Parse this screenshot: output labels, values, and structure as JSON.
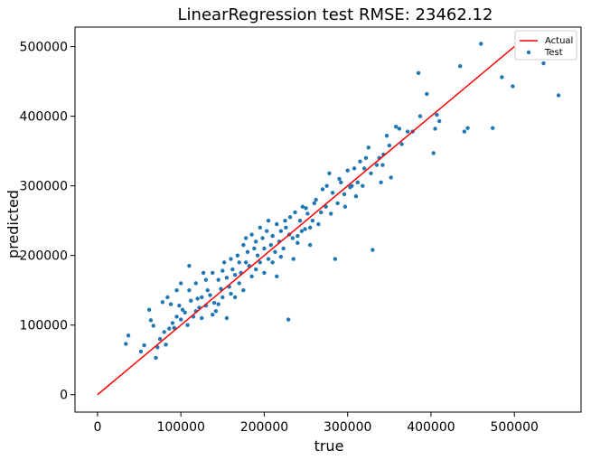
{
  "chart_data": {
    "type": "scatter",
    "title": "LinearRegression test RMSE: 23462.12",
    "xlabel": "true",
    "ylabel": "predicted",
    "xlim": [
      -27000,
      580000
    ],
    "ylim": [
      -25000,
      528000
    ],
    "xticks": [
      0,
      100000,
      200000,
      300000,
      400000,
      500000
    ],
    "yticks": [
      0,
      100000,
      200000,
      300000,
      400000,
      500000
    ],
    "xtick_labels": [
      "0",
      "100000",
      "200000",
      "300000",
      "400000",
      "500000"
    ],
    "ytick_labels": [
      "0",
      "100000",
      "200000",
      "300000",
      "400000",
      "500000"
    ],
    "grid": false,
    "legend_position": "top-right",
    "series": [
      {
        "name": "Actual",
        "kind": "line",
        "color": "#ff0000",
        "points": [
          [
            0,
            0
          ],
          [
            500000,
            500000
          ]
        ]
      },
      {
        "name": "Test",
        "kind": "scatter",
        "color": "#1f77b4",
        "points": [
          [
            34000,
            73000
          ],
          [
            37000,
            85000
          ],
          [
            52000,
            62000
          ],
          [
            56000,
            71000
          ],
          [
            62000,
            122000
          ],
          [
            64000,
            107000
          ],
          [
            67000,
            99000
          ],
          [
            70000,
            53000
          ],
          [
            72000,
            68000
          ],
          [
            75000,
            80000
          ],
          [
            78000,
            133000
          ],
          [
            80000,
            90000
          ],
          [
            82000,
            72000
          ],
          [
            84000,
            140000
          ],
          [
            86000,
            95000
          ],
          [
            88000,
            130000
          ],
          [
            90000,
            103000
          ],
          [
            92000,
            96000
          ],
          [
            95000,
            112000
          ],
          [
            98000,
            128000
          ],
          [
            100000,
            108000
          ],
          [
            102000,
            122000
          ],
          [
            105000,
            118000
          ],
          [
            108000,
            100000
          ],
          [
            110000,
            150000
          ],
          [
            112000,
            135000
          ],
          [
            115000,
            112000
          ],
          [
            118000,
            160000
          ],
          [
            120000,
            138000
          ],
          [
            122000,
            125000
          ],
          [
            125000,
            140000
          ],
          [
            127000,
            175000
          ],
          [
            130000,
            128000
          ],
          [
            132000,
            150000
          ],
          [
            135000,
            143000
          ],
          [
            138000,
            175000
          ],
          [
            140000,
            132000
          ],
          [
            142000,
            120000
          ],
          [
            145000,
            165000
          ],
          [
            148000,
            152000
          ],
          [
            150000,
            140000
          ],
          [
            152000,
            190000
          ],
          [
            155000,
            168000
          ],
          [
            158000,
            155000
          ],
          [
            160000,
            145000
          ],
          [
            162000,
            180000
          ],
          [
            165000,
            172000
          ],
          [
            168000,
            200000
          ],
          [
            170000,
            160000
          ],
          [
            172000,
            175000
          ],
          [
            175000,
            215000
          ],
          [
            178000,
            190000
          ],
          [
            180000,
            205000
          ],
          [
            182000,
            185000
          ],
          [
            185000,
            170000
          ],
          [
            188000,
            210000
          ],
          [
            190000,
            220000
          ],
          [
            192000,
            200000
          ],
          [
            195000,
            190000
          ],
          [
            198000,
            225000
          ],
          [
            200000,
            210000
          ],
          [
            203000,
            235000
          ],
          [
            205000,
            195000
          ],
          [
            208000,
            215000
          ],
          [
            210000,
            228000
          ],
          [
            213000,
            205000
          ],
          [
            215000,
            245000
          ],
          [
            218000,
            220000
          ],
          [
            220000,
            235000
          ],
          [
            223000,
            210000
          ],
          [
            226000,
            240000
          ],
          [
            229000,
            108000
          ],
          [
            231000,
            255000
          ],
          [
            234000,
            225000
          ],
          [
            237000,
            262000
          ],
          [
            240000,
            228000
          ],
          [
            243000,
            250000
          ],
          [
            246000,
            270000
          ],
          [
            249000,
            238000
          ],
          [
            252000,
            260000
          ],
          [
            255000,
            215000
          ],
          [
            258000,
            250000
          ],
          [
            262000,
            280000
          ],
          [
            265000,
            245000
          ],
          [
            270000,
            295000
          ],
          [
            274000,
            270000
          ],
          [
            278000,
            318000
          ],
          [
            282000,
            290000
          ],
          [
            285000,
            195000
          ],
          [
            288000,
            275000
          ],
          [
            292000,
            305000
          ],
          [
            296000,
            288000
          ],
          [
            300000,
            322000
          ],
          [
            305000,
            300000
          ],
          [
            310000,
            285000
          ],
          [
            315000,
            335000
          ],
          [
            320000,
            325000
          ],
          [
            325000,
            355000
          ],
          [
            330000,
            208000
          ],
          [
            335000,
            330000
          ],
          [
            340000,
            305000
          ],
          [
            343000,
            345000
          ],
          [
            347000,
            372000
          ],
          [
            352000,
            312000
          ],
          [
            358000,
            385000
          ],
          [
            365000,
            360000
          ],
          [
            378000,
            378000
          ],
          [
            385000,
            462000
          ],
          [
            387000,
            400000
          ],
          [
            395000,
            432000
          ],
          [
            403000,
            347000
          ],
          [
            407000,
            402000
          ],
          [
            410000,
            393000
          ],
          [
            435000,
            472000
          ],
          [
            440000,
            378000
          ],
          [
            444000,
            383000
          ],
          [
            460000,
            504000
          ],
          [
            474000,
            383000
          ],
          [
            485000,
            456000
          ],
          [
            498000,
            443000
          ],
          [
            535000,
            476000
          ],
          [
            553000,
            430000
          ],
          [
            95000,
            150000
          ],
          [
            100000,
            160000
          ],
          [
            110000,
            185000
          ],
          [
            118000,
            120000
          ],
          [
            125000,
            110000
          ],
          [
            130000,
            165000
          ],
          [
            138000,
            115000
          ],
          [
            145000,
            130000
          ],
          [
            150000,
            178000
          ],
          [
            155000,
            110000
          ],
          [
            160000,
            195000
          ],
          [
            165000,
            140000
          ],
          [
            170000,
            190000
          ],
          [
            175000,
            150000
          ],
          [
            178000,
            225000
          ],
          [
            185000,
            230000
          ],
          [
            190000,
            180000
          ],
          [
            195000,
            240000
          ],
          [
            200000,
            175000
          ],
          [
            205000,
            250000
          ],
          [
            210000,
            190000
          ],
          [
            215000,
            170000
          ],
          [
            220000,
            198000
          ],
          [
            225000,
            250000
          ],
          [
            230000,
            230000
          ],
          [
            235000,
            195000
          ],
          [
            240000,
            218000
          ],
          [
            245000,
            235000
          ],
          [
            250000,
            268000
          ],
          [
            255000,
            240000
          ],
          [
            260000,
            275000
          ],
          [
            268000,
            262000
          ],
          [
            275000,
            300000
          ],
          [
            280000,
            260000
          ],
          [
            290000,
            310000
          ],
          [
            297000,
            270000
          ],
          [
            303000,
            298000
          ],
          [
            308000,
            325000
          ],
          [
            312000,
            305000
          ],
          [
            318000,
            300000
          ],
          [
            322000,
            340000
          ],
          [
            328000,
            318000
          ],
          [
            338000,
            340000
          ],
          [
            342000,
            330000
          ],
          [
            350000,
            358000
          ],
          [
            362000,
            382000
          ],
          [
            372000,
            378000
          ],
          [
            405000,
            382000
          ]
        ]
      }
    ]
  }
}
